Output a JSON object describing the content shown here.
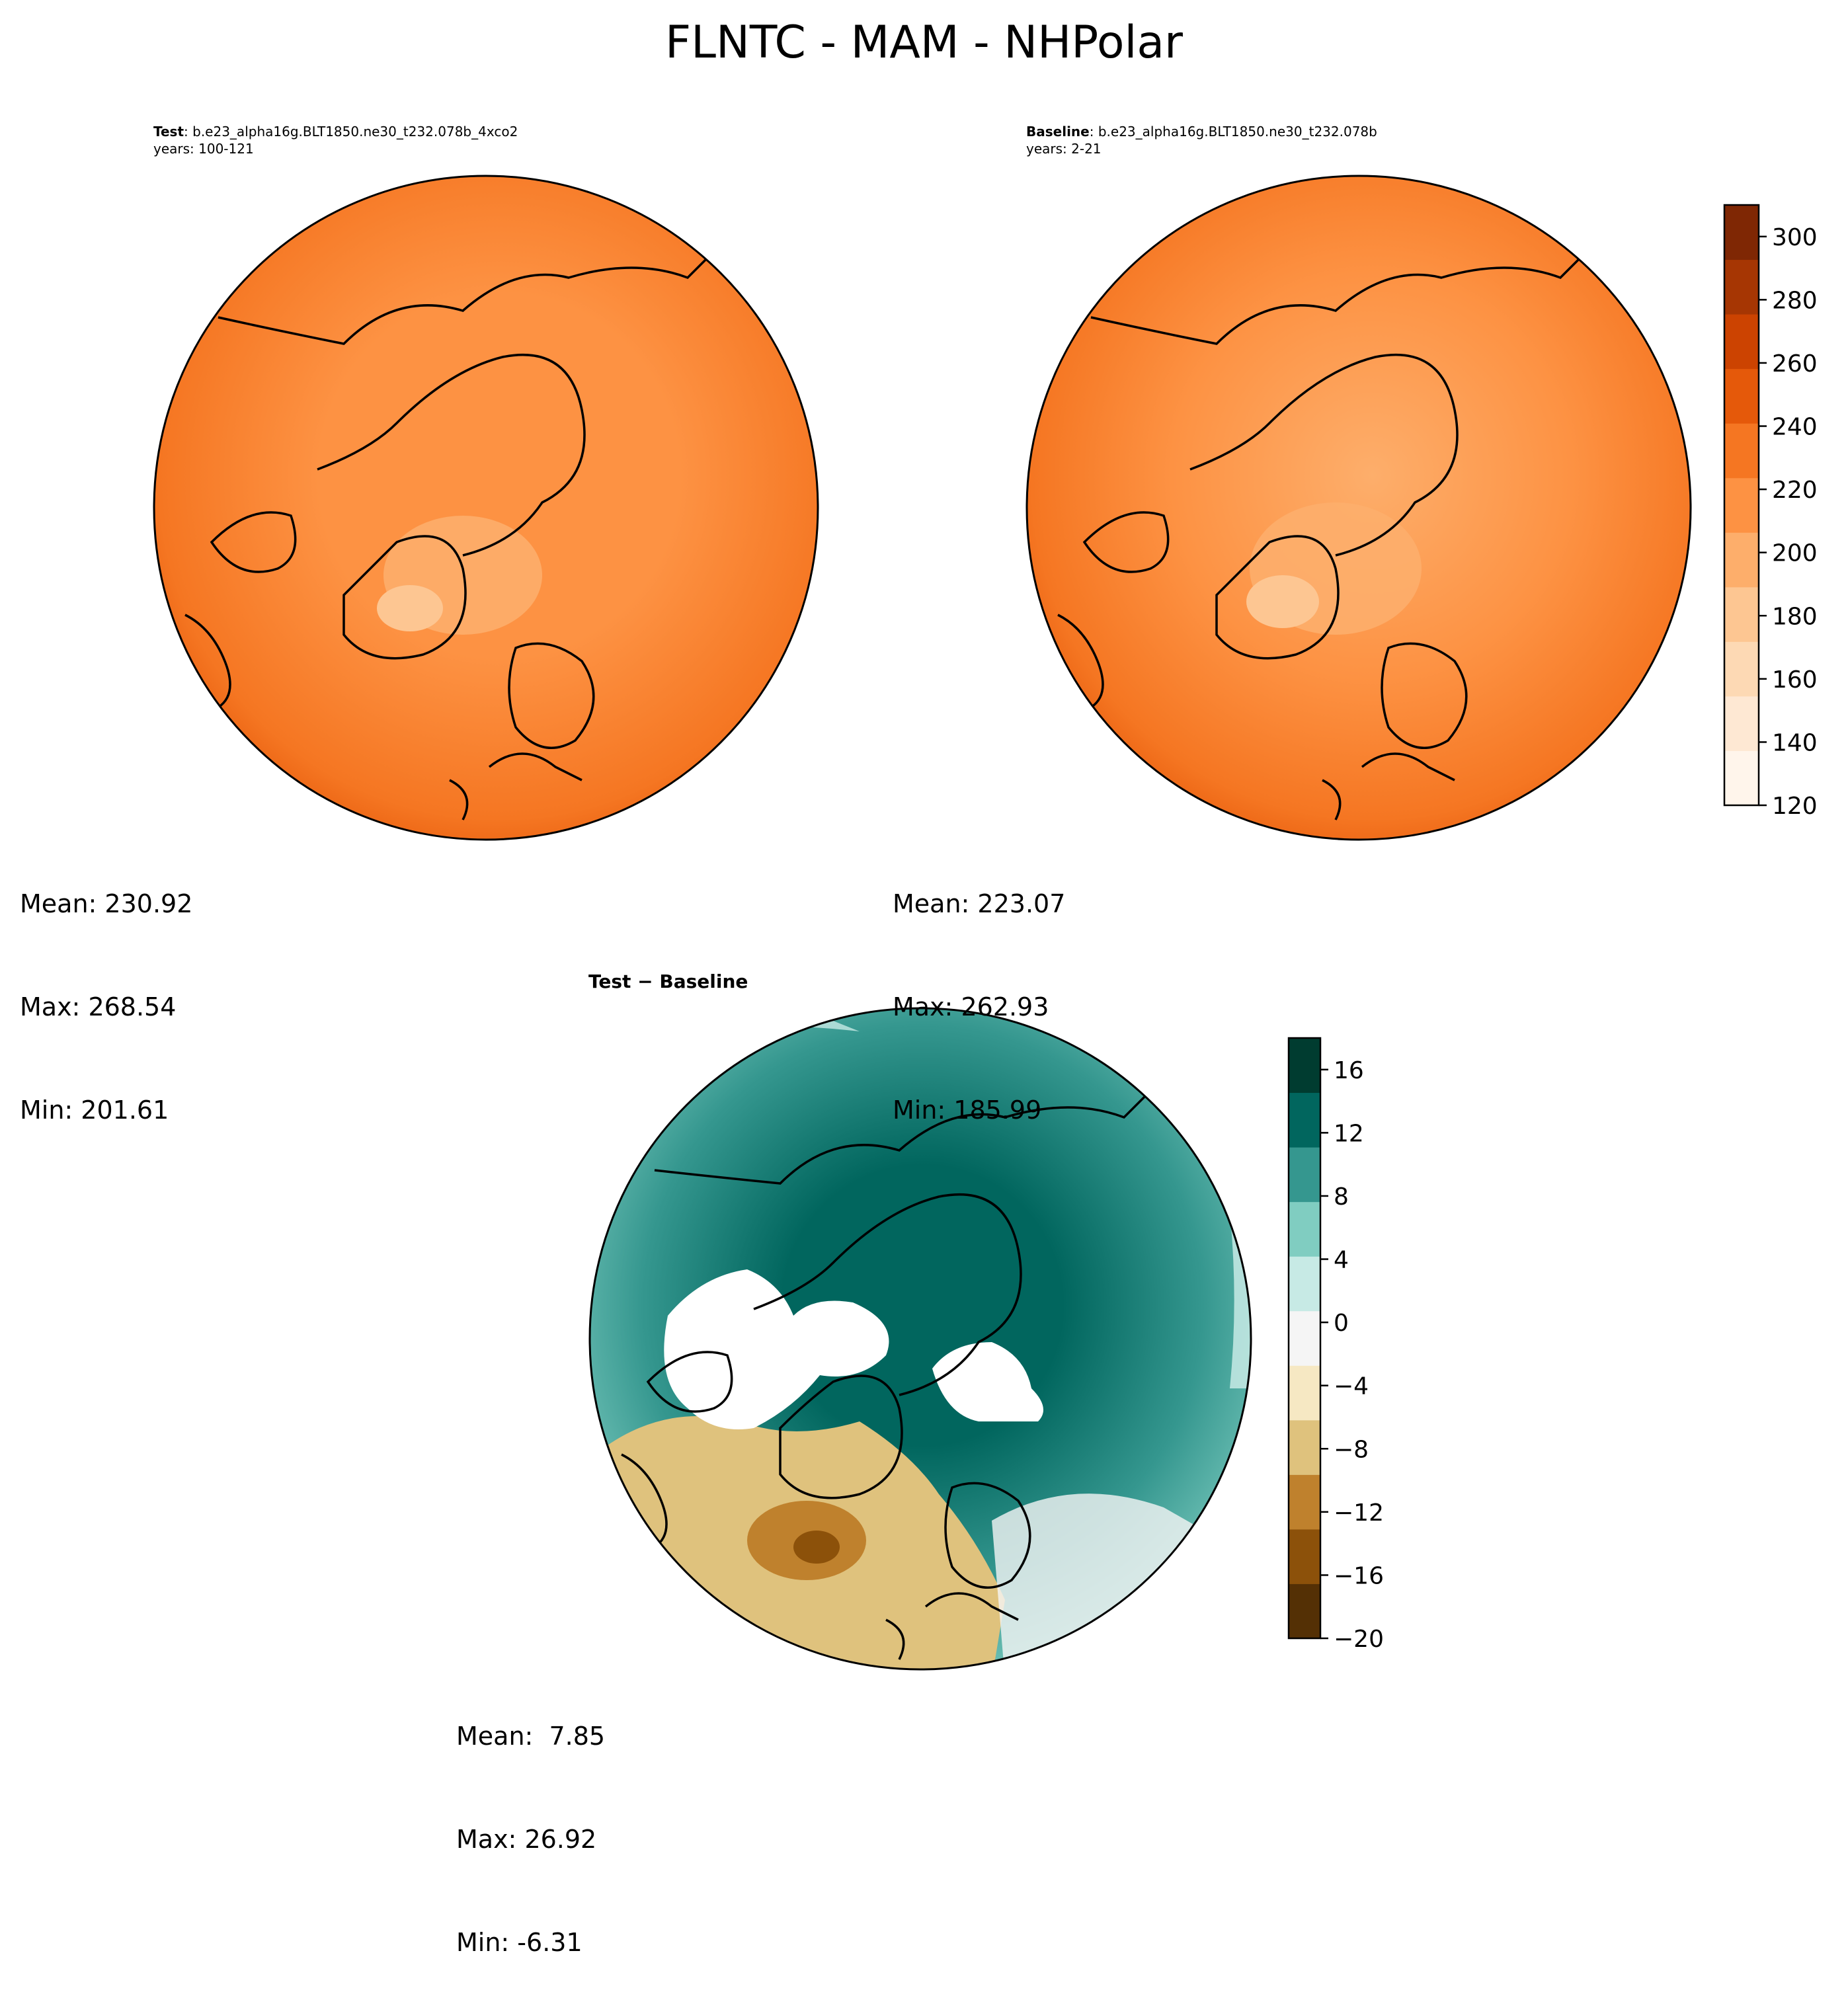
{
  "title": "FLNTC - MAM - NHPolar",
  "panels": {
    "test": {
      "label": "Test",
      "case": "b.e23_alpha16g.BLT1850.ne30_t232.078b_4xco2",
      "years": "years: 100-121",
      "mean": "Mean: 230.92",
      "max": "Max: 268.54",
      "min": "Min: 201.61"
    },
    "baseline": {
      "label": "Baseline",
      "case": "b.e23_alpha16g.BLT1850.ne30_t232.078b",
      "years": "years: 2-21",
      "mean": "Mean: 223.07",
      "max": "Max: 262.93",
      "min": "Min: 185.99"
    },
    "diff": {
      "title": "Test − Baseline",
      "mean": "Mean:  7.85",
      "max": "Max: 26.92",
      "min": "Min: -6.31"
    }
  },
  "colorbars": {
    "main": {
      "ticks": [
        "120",
        "140",
        "160",
        "180",
        "200",
        "220",
        "240",
        "260",
        "280",
        "300"
      ],
      "range": [
        120,
        310
      ],
      "colors": [
        "#fff5eb",
        "#fee8d3",
        "#fdd9b4",
        "#fdc692",
        "#fdae6b",
        "#fd9243",
        "#f57622",
        "#e5590a",
        "#cc4301",
        "#a63603",
        "#7f2704"
      ]
    },
    "diff": {
      "ticks": [
        "−20",
        "−16",
        "−12",
        "−8",
        "−4",
        "0",
        "4",
        "8",
        "12",
        "16"
      ],
      "range": [
        -20,
        18
      ],
      "colors": [
        "#543005",
        "#8c510a",
        "#bf812d",
        "#dfc27d",
        "#f6e8c3",
        "#f5f5f5",
        "#c7eae5",
        "#80cdc1",
        "#35978f",
        "#01665e",
        "#003c30"
      ]
    }
  },
  "map_colors": {
    "outer": "#e5590a",
    "mid": "#f57622",
    "inner": "#fd9243",
    "greenland": "#fdc692",
    "diff_outer": "#35978f",
    "diff_mid": "#80cdc1",
    "diff_center": "#01665e",
    "diff_neg": "#dfc27d",
    "diff_light": "#c7eae5"
  }
}
